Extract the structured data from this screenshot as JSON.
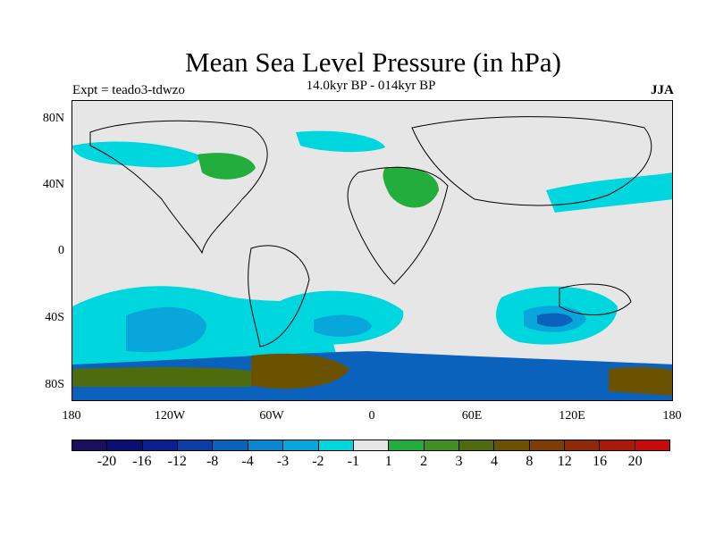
{
  "title": "Mean Sea Level Pressure (in hPa)",
  "subtitle": "14.0kyr BP - 014kyr BP",
  "experiment": "Expt = teado3-tdwzo",
  "season": "JJA",
  "lat_labels": [
    "80N",
    "40N",
    "0",
    "40S",
    "80S"
  ],
  "lon_labels": [
    "180",
    "120W",
    "60W",
    "0",
    "60E",
    "120E",
    "180"
  ],
  "colorbar": {
    "colors": [
      "#1a0f5c",
      "#0b0f73",
      "#0a2091",
      "#0b3fa6",
      "#0b62bd",
      "#0a85cf",
      "#09a6dc",
      "#00d6de",
      "#e6e6e6",
      "#22ad3c",
      "#3f8f22",
      "#4e6b0e",
      "#6a5200",
      "#7f3d06",
      "#8f2a08",
      "#a81b0a",
      "#c90a0a"
    ],
    "labels": [
      "-20",
      "-16",
      "-12",
      "-8",
      "-4",
      "-3",
      "-2",
      "-1",
      "1",
      "2",
      "3",
      "4",
      "8",
      "12",
      "16",
      "20"
    ]
  }
}
